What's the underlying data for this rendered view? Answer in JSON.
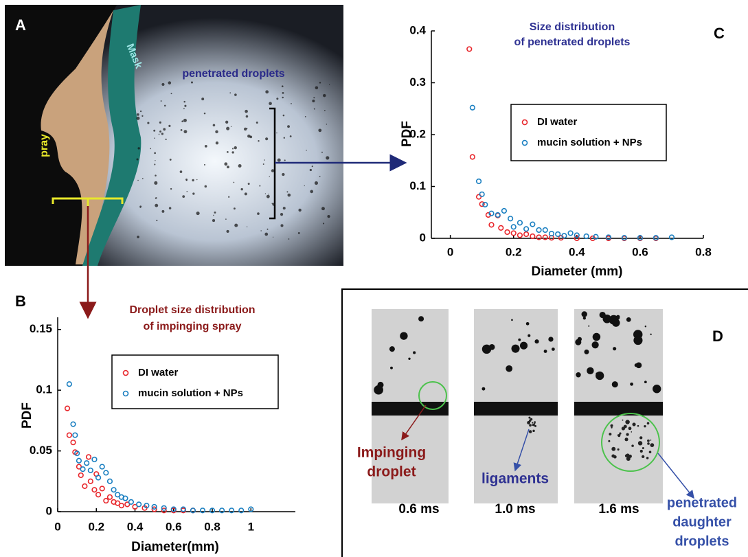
{
  "chart_data": [
    {
      "type": "scatter",
      "label": "B",
      "title": [
        "Droplet size distribution",
        "of impinging spray"
      ],
      "x_label": "Diameter(mm)",
      "y_label": "PDF",
      "xlim": [
        0,
        1.23
      ],
      "ylim": [
        0,
        0.16
      ],
      "xticks": [
        0,
        0.2,
        0.4,
        0.6,
        0.8,
        1
      ],
      "yticks": [
        0,
        0.05,
        0.1,
        0.15
      ],
      "series": [
        {
          "name": "DI water",
          "color": "#e8262b",
          "x": [
            0.05,
            0.06,
            0.08,
            0.09,
            0.11,
            0.12,
            0.14,
            0.16,
            0.17,
            0.19,
            0.2,
            0.21,
            0.23,
            0.25,
            0.27,
            0.29,
            0.31,
            0.33,
            0.36,
            0.4,
            0.45,
            0.5,
            0.55,
            0.6,
            0.65,
            0.7
          ],
          "values": [
            0.085,
            0.063,
            0.057,
            0.049,
            0.037,
            0.03,
            0.021,
            0.045,
            0.025,
            0.018,
            0.031,
            0.014,
            0.019,
            0.009,
            0.012,
            0.008,
            0.007,
            0.005,
            0.006,
            0.004,
            0.003,
            0.002,
            0.001,
            0.001,
            0.001,
            0.001
          ]
        },
        {
          "name": "mucin solution + NPs",
          "color": "#1a7fc1",
          "x": [
            0.06,
            0.08,
            0.09,
            0.1,
            0.11,
            0.13,
            0.15,
            0.17,
            0.19,
            0.21,
            0.23,
            0.25,
            0.27,
            0.29,
            0.31,
            0.33,
            0.35,
            0.38,
            0.42,
            0.46,
            0.5,
            0.55,
            0.6,
            0.65,
            0.7,
            0.75,
            0.8,
            0.85,
            0.9,
            0.95,
            1.0
          ],
          "values": [
            0.105,
            0.072,
            0.063,
            0.048,
            0.042,
            0.035,
            0.04,
            0.034,
            0.043,
            0.028,
            0.037,
            0.032,
            0.025,
            0.018,
            0.014,
            0.012,
            0.011,
            0.008,
            0.006,
            0.005,
            0.004,
            0.003,
            0.002,
            0.002,
            0.001,
            0.001,
            0.001,
            0.001,
            0.001,
            0.001,
            0.002
          ]
        }
      ]
    },
    {
      "type": "scatter",
      "label": "C",
      "title": [
        "Size distribution",
        "of penetrated droplets"
      ],
      "x_label": "Diameter (mm)",
      "y_label": "PDF",
      "xlim": [
        -0.06,
        0.8
      ],
      "ylim": [
        0,
        0.4
      ],
      "xticks": [
        0,
        0.2,
        0.4,
        0.6,
        0.8
      ],
      "yticks": [
        0,
        0.1,
        0.2,
        0.3,
        0.4
      ],
      "series": [
        {
          "name": "DI water",
          "color": "#e8262b",
          "x": [
            0.06,
            0.07,
            0.09,
            0.1,
            0.12,
            0.13,
            0.15,
            0.16,
            0.18,
            0.2,
            0.22,
            0.24,
            0.26,
            0.28,
            0.3,
            0.32,
            0.35,
            0.4,
            0.45,
            0.5,
            0.55,
            0.6,
            0.65
          ],
          "values": [
            0.365,
            0.157,
            0.08,
            0.066,
            0.045,
            0.026,
            0.044,
            0.02,
            0.012,
            0.01,
            0.006,
            0.008,
            0.004,
            0.002,
            0.002,
            0.001,
            0.001,
            0,
            0,
            0,
            0,
            0,
            0
          ]
        },
        {
          "name": "mucin solution + NPs",
          "color": "#1a7fc1",
          "x": [
            0.07,
            0.09,
            0.1,
            0.11,
            0.13,
            0.15,
            0.17,
            0.19,
            0.2,
            0.22,
            0.24,
            0.26,
            0.28,
            0.3,
            0.32,
            0.34,
            0.36,
            0.38,
            0.4,
            0.43,
            0.46,
            0.5,
            0.55,
            0.6,
            0.65,
            0.7
          ],
          "values": [
            0.252,
            0.11,
            0.085,
            0.065,
            0.048,
            0.045,
            0.053,
            0.038,
            0.022,
            0.03,
            0.018,
            0.027,
            0.016,
            0.016,
            0.009,
            0.008,
            0.005,
            0.01,
            0.006,
            0.004,
            0.003,
            0.002,
            0.001,
            0.001,
            0.001,
            0.002
          ]
        }
      ]
    }
  ],
  "image_panels": {
    "A": {
      "label": "A",
      "texts": [
        "Mask",
        "penetrated droplets",
        "pray"
      ]
    },
    "D": {
      "label": "D",
      "times": [
        "0.6 ms",
        "1.0 ms",
        "1.6 ms"
      ],
      "annotations": [
        {
          "lines": [
            "Impinging",
            "droplet"
          ]
        },
        {
          "lines": [
            "ligaments"
          ]
        },
        {
          "lines": [
            "penetrated",
            "daughter",
            "droplets"
          ]
        }
      ]
    }
  }
}
